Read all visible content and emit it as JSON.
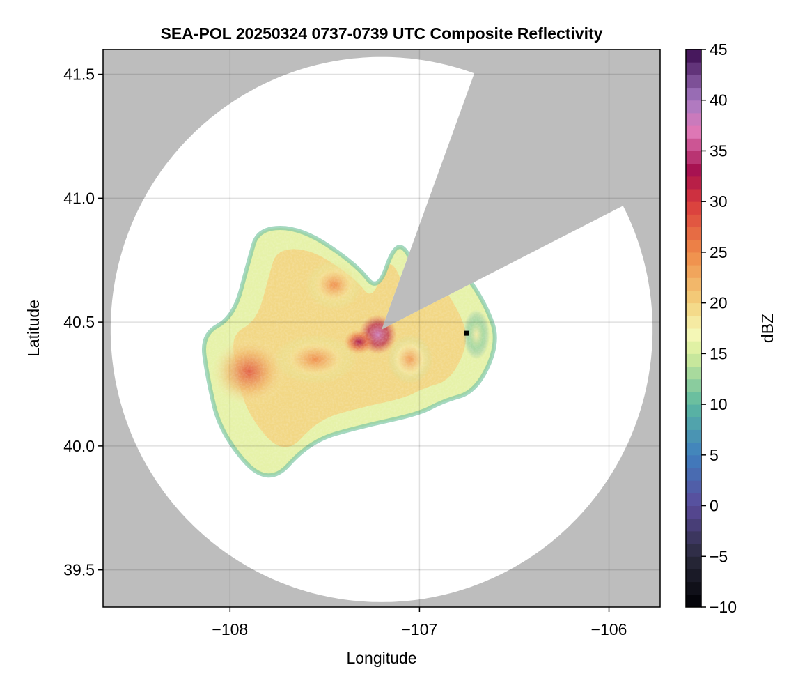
{
  "chart_data": {
    "type": "heatmap",
    "title": "SEA-POL 20250324 0737-0739 UTC Composite Reflectivity",
    "xlabel": "Longitude",
    "ylabel": "Latitude",
    "xlim": [
      -108.67,
      -105.73
    ],
    "ylim": [
      39.35,
      41.6
    ],
    "xticks": [
      -108,
      -107,
      -106
    ],
    "xtick_labels": [
      "−108",
      "−107",
      "−106"
    ],
    "yticks": [
      39.5,
      40.0,
      40.5,
      41.0,
      41.5
    ],
    "ytick_labels": [
      "39.5",
      "40.0",
      "40.5",
      "41.0",
      "41.5"
    ],
    "grid": true,
    "background_color": "#bdbdbd",
    "coverage_color": "#ffffff",
    "radar": {
      "center_lon": -107.2,
      "center_lat": 40.47,
      "range_lat_deg": 1.1,
      "range_lon_deg": 1.43,
      "blocked_sector_deg": [
        20,
        63
      ]
    },
    "marker": {
      "lon": -106.75,
      "lat": 40.455,
      "color": "#000000"
    },
    "colorbar": {
      "label": "dBZ",
      "min": -10,
      "max": 45,
      "ticks": [
        -10,
        -5,
        0,
        5,
        10,
        15,
        20,
        25,
        30,
        35,
        40,
        45
      ],
      "tick_labels": [
        "−10",
        "−5",
        "0",
        "5",
        "10",
        "15",
        "20",
        "25",
        "30",
        "35",
        "40",
        "45"
      ],
      "color_stops": [
        [
          -10,
          "#000004"
        ],
        [
          -5,
          "#2a2a3c"
        ],
        [
          0,
          "#5a4a9a"
        ],
        [
          5,
          "#3f7fbf"
        ],
        [
          10,
          "#5cb8a0"
        ],
        [
          15,
          "#d6ee9b"
        ],
        [
          17,
          "#f6f8b8"
        ],
        [
          20,
          "#f3d27e"
        ],
        [
          25,
          "#ef8a48"
        ],
        [
          30,
          "#d8393c"
        ],
        [
          33,
          "#a50f4e"
        ],
        [
          37,
          "#e07ab8"
        ],
        [
          40,
          "#a57ac2"
        ],
        [
          45,
          "#3a0a4f"
        ]
      ]
    },
    "echo_region": {
      "outline": [
        [
          -107.85,
          40.88
        ],
        [
          -107.62,
          40.88
        ],
        [
          -107.33,
          40.73
        ],
        [
          -107.22,
          40.62
        ],
        [
          -107.13,
          40.82
        ],
        [
          -107.05,
          40.78
        ],
        [
          -106.98,
          40.58
        ],
        [
          -106.78,
          40.72
        ],
        [
          -106.65,
          40.57
        ],
        [
          -106.58,
          40.42
        ],
        [
          -106.7,
          40.22
        ],
        [
          -106.88,
          40.18
        ],
        [
          -107.0,
          40.13
        ],
        [
          -107.3,
          40.08
        ],
        [
          -107.58,
          40.02
        ],
        [
          -107.8,
          39.83
        ],
        [
          -108.05,
          40.05
        ],
        [
          -108.12,
          40.28
        ],
        [
          -108.15,
          40.45
        ],
        [
          -107.98,
          40.52
        ],
        [
          -107.9,
          40.75
        ]
      ],
      "cells": [
        {
          "lon": -107.9,
          "lat": 40.3,
          "dbz": 28,
          "r_lon": 0.2,
          "r_lat": 0.14
        },
        {
          "lon": -107.55,
          "lat": 40.35,
          "dbz": 25,
          "r_lon": 0.22,
          "r_lat": 0.1
        },
        {
          "lon": -107.45,
          "lat": 40.65,
          "dbz": 25,
          "r_lon": 0.15,
          "r_lat": 0.1
        },
        {
          "lon": -107.22,
          "lat": 40.45,
          "dbz": 38,
          "r_lon": 0.1,
          "r_lat": 0.08
        },
        {
          "lon": -107.32,
          "lat": 40.42,
          "dbz": 33,
          "r_lon": 0.08,
          "r_lat": 0.05
        },
        {
          "lon": -107.05,
          "lat": 40.35,
          "dbz": 24,
          "r_lon": 0.12,
          "r_lat": 0.1
        },
        {
          "lon": -106.7,
          "lat": 40.45,
          "dbz": 18,
          "r_lon": 0.07,
          "r_lat": 0.1
        }
      ]
    }
  }
}
